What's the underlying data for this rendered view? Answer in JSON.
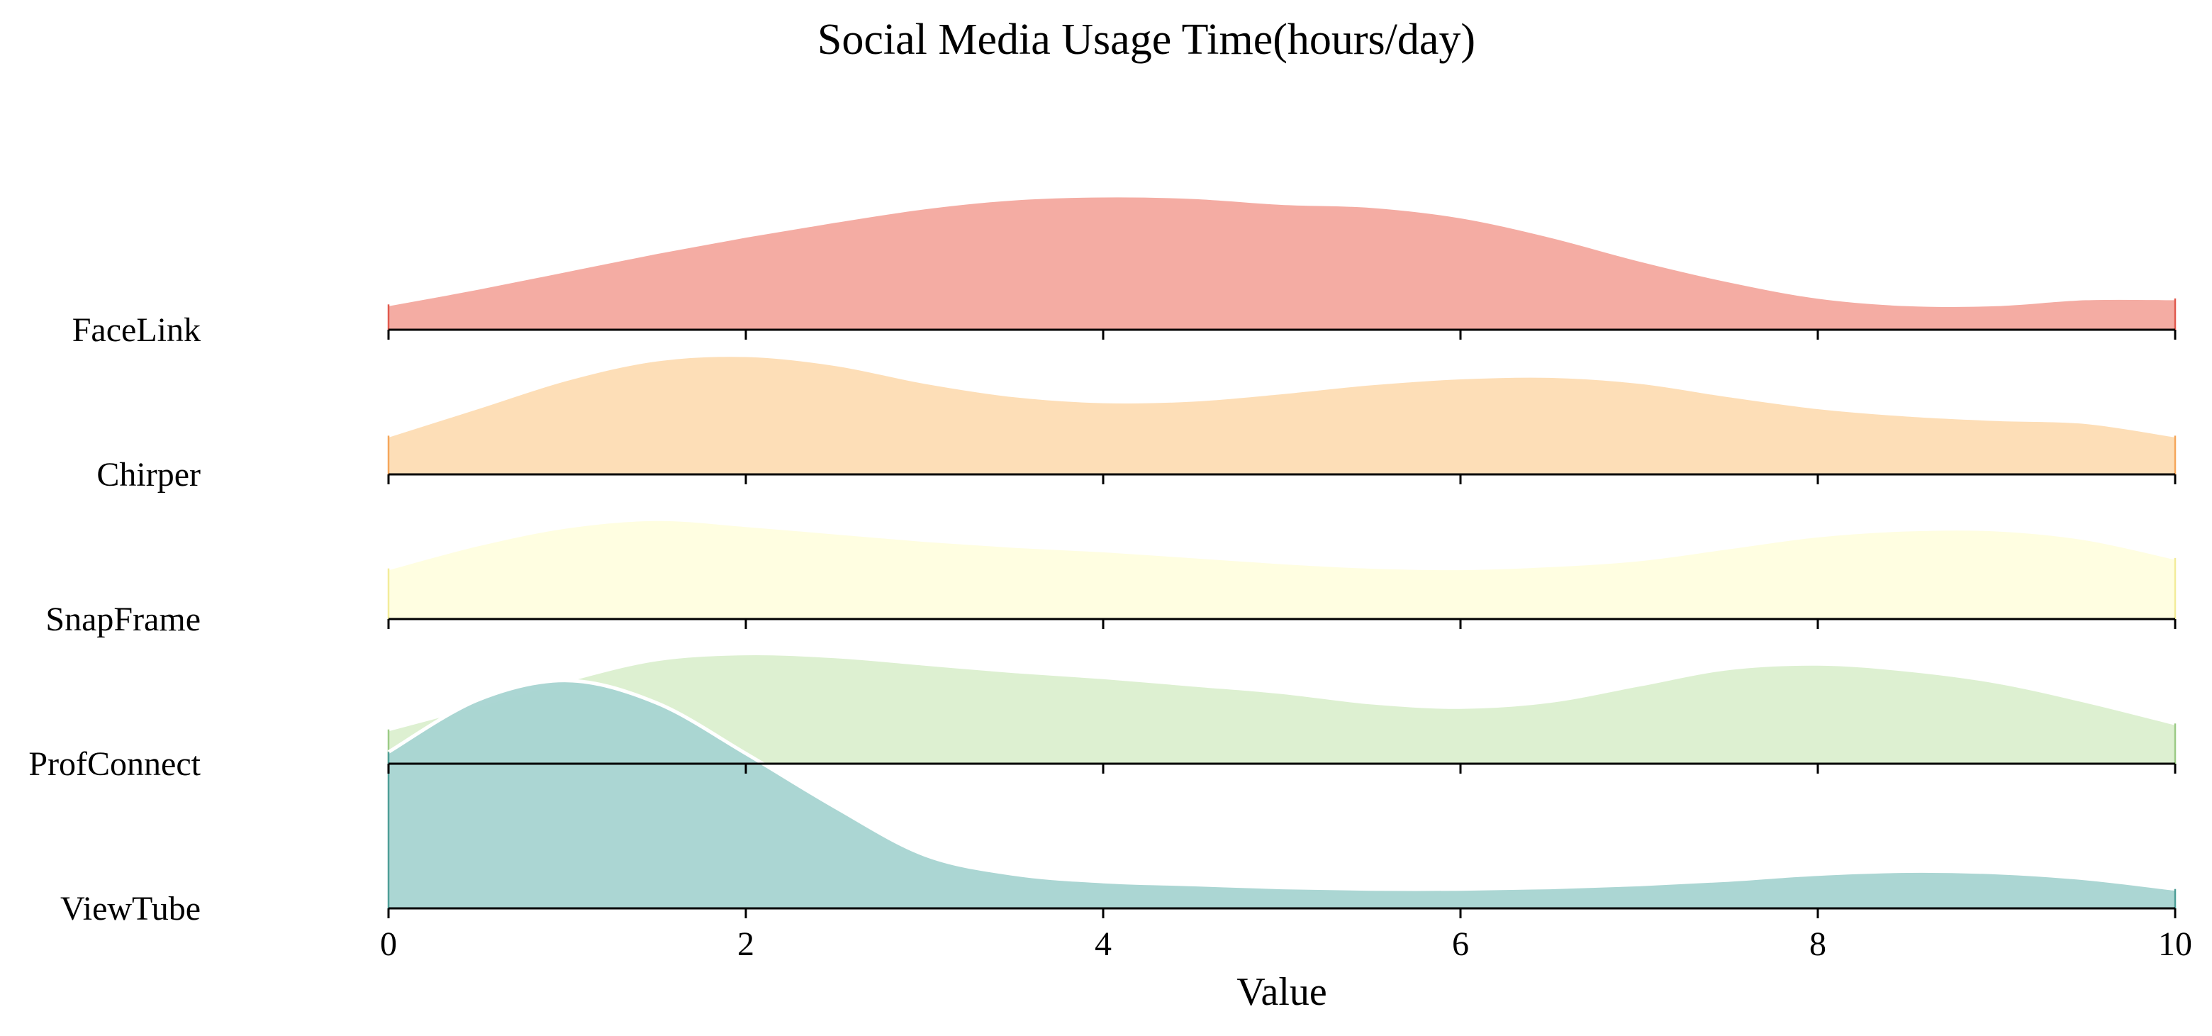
{
  "chart_data": {
    "type": "area",
    "subtype": "ridgeline",
    "title": "Social Media Usage Time(hours/day)",
    "xlabel": "Value",
    "ylabel": "",
    "xlim": [
      0,
      10
    ],
    "x_ticks": [
      0,
      2,
      4,
      6,
      8,
      10
    ],
    "grid": false,
    "legend": "none",
    "x": [
      0,
      0.5,
      1,
      1.5,
      2,
      2.5,
      3,
      3.5,
      4,
      4.5,
      5,
      5.5,
      6,
      6.5,
      7,
      7.5,
      8,
      8.5,
      9,
      9.5,
      10
    ],
    "series": [
      {
        "name": "FaceLink",
        "color": "#F4A9A0",
        "edge_color": "#E05A4E",
        "values": [
          0.17,
          0.28,
          0.4,
          0.52,
          0.63,
          0.73,
          0.82,
          0.88,
          0.9,
          0.89,
          0.85,
          0.83,
          0.76,
          0.63,
          0.47,
          0.33,
          0.22,
          0.17,
          0.17,
          0.21,
          0.21
        ]
      },
      {
        "name": "Chirper",
        "color": "#FDDDB5",
        "edge_color": "#F5A65B",
        "values": [
          0.26,
          0.45,
          0.64,
          0.77,
          0.8,
          0.74,
          0.62,
          0.53,
          0.49,
          0.5,
          0.55,
          0.61,
          0.65,
          0.66,
          0.62,
          0.53,
          0.45,
          0.4,
          0.37,
          0.35,
          0.26
        ]
      },
      {
        "name": "SnapFrame",
        "color": "#FFFEE0",
        "edge_color": "#F2EC9A",
        "values": [
          0.34,
          0.5,
          0.62,
          0.67,
          0.63,
          0.58,
          0.53,
          0.49,
          0.46,
          0.42,
          0.38,
          0.35,
          0.34,
          0.36,
          0.4,
          0.48,
          0.56,
          0.6,
          0.6,
          0.54,
          0.41
        ]
      },
      {
        "name": "ProfConnect",
        "color": "#DCEFCF",
        "edge_color": "#9CCB86",
        "values": [
          0.23,
          0.39,
          0.56,
          0.7,
          0.74,
          0.72,
          0.67,
          0.62,
          0.58,
          0.53,
          0.48,
          0.41,
          0.38,
          0.42,
          0.53,
          0.64,
          0.67,
          0.63,
          0.55,
          0.42,
          0.27
        ]
      },
      {
        "name": "ViewTube",
        "color": "#A8D5D2",
        "edge_color": "#4F9E97",
        "values": [
          1.05,
          1.4,
          1.53,
          1.38,
          1.04,
          0.68,
          0.36,
          0.23,
          0.18,
          0.16,
          0.14,
          0.13,
          0.13,
          0.14,
          0.16,
          0.19,
          0.23,
          0.25,
          0.24,
          0.2,
          0.13
        ]
      }
    ]
  }
}
